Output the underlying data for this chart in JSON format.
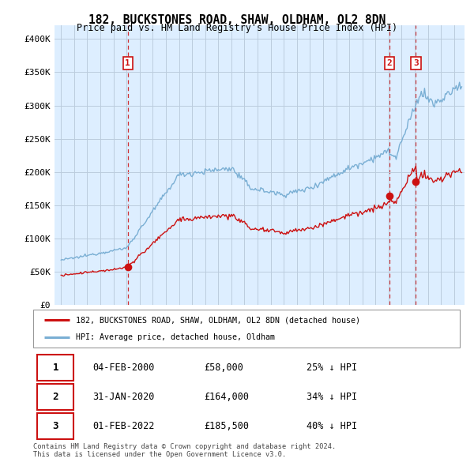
{
  "title": "182, BUCKSTONES ROAD, SHAW, OLDHAM, OL2 8DN",
  "subtitle": "Price paid vs. HM Land Registry's House Price Index (HPI)",
  "hpi_color": "#7aafd4",
  "price_color": "#cc1111",
  "transactions": [
    {
      "year": 2000.09,
      "price": 58000,
      "label": "1"
    },
    {
      "year": 2020.08,
      "price": 164000,
      "label": "2"
    },
    {
      "year": 2022.09,
      "price": 185500,
      "label": "3"
    }
  ],
  "legend_entries": [
    "182, BUCKSTONES ROAD, SHAW, OLDHAM, OL2 8DN (detached house)",
    "HPI: Average price, detached house, Oldham"
  ],
  "table_rows": [
    [
      "1",
      "04-FEB-2000",
      "£58,000",
      "25% ↓ HPI"
    ],
    [
      "2",
      "31-JAN-2020",
      "£164,000",
      "34% ↓ HPI"
    ],
    [
      "3",
      "01-FEB-2022",
      "£185,500",
      "40% ↓ HPI"
    ]
  ],
  "footer": "Contains HM Land Registry data © Crown copyright and database right 2024.\nThis data is licensed under the Open Government Licence v3.0.",
  "ylim": [
    0,
    420000
  ],
  "yticks": [
    0,
    50000,
    100000,
    150000,
    200000,
    250000,
    300000,
    350000,
    400000
  ],
  "ytick_labels": [
    "£0",
    "£50K",
    "£100K",
    "£150K",
    "£200K",
    "£250K",
    "£300K",
    "£350K",
    "£400K"
  ],
  "xlim_start": 1994.5,
  "xlim_end": 2025.8,
  "background_color": "#ffffff",
  "chart_bg_color": "#ddeeff",
  "grid_color": "#bbccdd"
}
